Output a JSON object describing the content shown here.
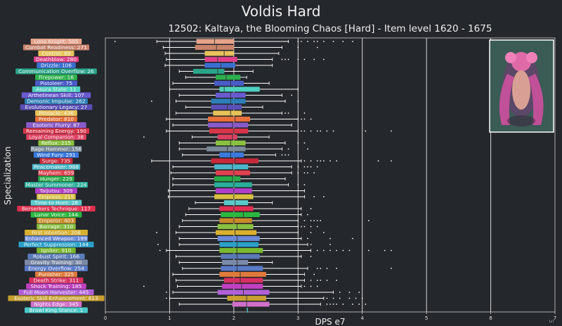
{
  "chart_data": {
    "type": "boxplot",
    "title": "Voldis Hard",
    "subtitle": "12502: Kaltaya, the Blooming Chaos [Hard] - Item level 1620 - 1675",
    "xlabel": "DPS e7",
    "ylabel": "Specialization",
    "x_scale_note": "1e7",
    "xlim": [
      0,
      7
    ],
    "xticks": [
      "0",
      "1",
      "2",
      "3",
      "4",
      "5",
      "6",
      "7"
    ],
    "grid_x": true,
    "inset_image": "boss-portrait",
    "categories": [
      {
        "label": "Lone Knight: 505",
        "color": "#e6a38a",
        "q1": 1.42,
        "med": 1.7,
        "q3": 2.0,
        "wl": 0.8,
        "wh": 2.85,
        "out": [
          0.15,
          3.0,
          3.05,
          3.15,
          3.25,
          3.3,
          3.4,
          3.55,
          3.7,
          3.85
        ]
      },
      {
        "label": "Combat Readiness: 271",
        "color": "#c9836b",
        "q1": 1.4,
        "med": 1.73,
        "q3": 2.0,
        "wl": 0.9,
        "wh": 2.75,
        "out": [
          3.0,
          3.3
        ]
      },
      {
        "label": "Control: 89",
        "color": "#e8c35a",
        "q1": 1.55,
        "med": 1.85,
        "q3": 2.0,
        "wl": 0.93,
        "wh": 2.7,
        "out": []
      },
      {
        "label": "Deathblow: 280",
        "color": "#e0408a",
        "q1": 1.55,
        "med": 1.75,
        "q3": 2.05,
        "wl": 0.95,
        "wh": 2.6,
        "out": [
          2.75,
          2.8,
          2.85,
          3.0,
          3.1,
          3.25,
          3.4
        ]
      },
      {
        "label": "Drizzle: 106",
        "color": "#3a6fd0",
        "q1": 1.55,
        "med": 1.8,
        "q3": 2.02,
        "wl": 0.93,
        "wh": 2.6,
        "out": []
      },
      {
        "label": "Communication Overflow: 26",
        "color": "#2aa58a",
        "q1": 1.37,
        "med": 1.75,
        "q3": 1.85,
        "wl": 1.15,
        "wh": 2.3,
        "out": []
      },
      {
        "label": "Firepower: 16",
        "color": "#2bb04e",
        "q1": 1.72,
        "med": 1.88,
        "q3": 2.1,
        "wl": 1.25,
        "wh": 2.2,
        "out": []
      },
      {
        "label": "Pistoleer: 75",
        "color": "#4a5cc8",
        "q1": 1.7,
        "med": 1.95,
        "q3": 2.15,
        "wl": 1.05,
        "wh": 2.55,
        "out": []
      },
      {
        "label": "Asura State: 11",
        "color": "#4fd1c0",
        "q1": 1.78,
        "med": 1.85,
        "q3": 2.4,
        "wl": 1.0,
        "wh": 3.0,
        "out": []
      },
      {
        "label": "Arthetinean Skill: 107",
        "color": "#6a5ad0",
        "q1": 1.72,
        "med": 1.95,
        "q3": 2.18,
        "wl": 1.15,
        "wh": 2.75,
        "out": [
          2.9
        ]
      },
      {
        "label": "Demonic Impulse: 262",
        "color": "#2d7fb8",
        "q1": 1.65,
        "med": 1.95,
        "q3": 2.18,
        "wl": 1.1,
        "wh": 2.8,
        "out": [
          0.72,
          3.0
        ]
      },
      {
        "label": "Evolutionary Legacy: 27",
        "color": "#5a4fb8",
        "q1": 1.65,
        "med": 1.9,
        "q3": 2.12,
        "wl": 1.25,
        "wh": 2.45,
        "out": []
      },
      {
        "label": "Pinnacle: 436",
        "color": "#e8c35a",
        "q1": 1.68,
        "med": 1.95,
        "q3": 2.12,
        "wl": 1.1,
        "wh": 2.75,
        "out": [
          2.8,
          2.85,
          3.1
        ]
      },
      {
        "label": "Predator: 810",
        "color": "#e8703a",
        "q1": 1.6,
        "med": 2.02,
        "q3": 2.25,
        "wl": 0.95,
        "wh": 3.0,
        "out": [
          3.05,
          3.1,
          3.2
        ]
      },
      {
        "label": "Esoteric Flurry: 87",
        "color": "#8a5ac8",
        "q1": 1.6,
        "med": 1.98,
        "q3": 2.22,
        "wl": 1.05,
        "wh": 2.9,
        "out": []
      },
      {
        "label": "Remaining Energy: 190",
        "color": "#d8344a",
        "q1": 1.62,
        "med": 2.0,
        "q3": 2.22,
        "wl": 0.95,
        "wh": 3.0,
        "out": [
          3.05,
          3.1,
          3.2,
          3.3,
          3.35,
          3.45,
          3.55,
          4.05,
          4.45
        ]
      },
      {
        "label": "Loyal Companion: 38",
        "color": "#e04060",
        "q1": 1.75,
        "med": 1.98,
        "q3": 2.05,
        "wl": 1.35,
        "wh": 2.55,
        "out": [
          0.6
        ]
      },
      {
        "label": "Reflux: 215",
        "color": "#8ac040",
        "q1": 1.72,
        "med": 1.95,
        "q3": 2.18,
        "wl": 1.15,
        "wh": 2.8,
        "out": [
          3.0,
          3.1
        ]
      },
      {
        "label": "Rage Hammer: 156",
        "color": "#7a8a9a",
        "q1": 1.58,
        "med": 1.9,
        "q3": 2.18,
        "wl": 1.15,
        "wh": 2.75,
        "out": [
          2.85,
          3.15
        ]
      },
      {
        "label": "Wind Fury: 291",
        "color": "#3a7ae0",
        "q1": 1.78,
        "med": 1.95,
        "q3": 2.15,
        "wl": 1.2,
        "wh": 2.65,
        "out": [
          2.75,
          2.8,
          2.85
        ]
      },
      {
        "label": "Surge: 735",
        "color": "#c82a3a",
        "q1": 1.65,
        "med": 2.02,
        "q3": 2.38,
        "wl": 0.72,
        "wh": 3.05,
        "out": [
          3.1,
          3.2,
          3.3,
          3.35,
          3.4,
          3.5,
          3.6,
          4.25,
          4.45
        ]
      },
      {
        "label": "Peacemaker: 988",
        "color": "#4ab8c8",
        "q1": 1.7,
        "med": 1.98,
        "q3": 2.22,
        "wl": 1.05,
        "wh": 2.9,
        "out": [
          3.0,
          3.1,
          3.15,
          3.2,
          3.3
        ]
      },
      {
        "label": "Mayhem: 659",
        "color": "#e04050",
        "q1": 1.72,
        "med": 2.0,
        "q3": 2.25,
        "wl": 1.02,
        "wh": 2.9,
        "out": [
          3.0,
          3.1,
          3.15,
          3.25
        ]
      },
      {
        "label": "Hunger: 229",
        "color": "#2aaa4a",
        "q1": 1.7,
        "med": 1.98,
        "q3": 2.1,
        "wl": 1.05,
        "wh": 2.8,
        "out": []
      },
      {
        "label": "Master Summoner: 224",
        "color": "#2ab09a",
        "q1": 1.7,
        "med": 2.0,
        "q3": 2.28,
        "wl": 1.05,
        "wh": 2.85,
        "out": [
          3.0,
          3.1
        ]
      },
      {
        "label": "Taijutsu: 309",
        "color": "#b040c8",
        "q1": 1.72,
        "med": 2.0,
        "q3": 2.28,
        "wl": 0.98,
        "wh": 3.1,
        "out": []
      },
      {
        "label": "Empress: 215",
        "color": "#d8c040",
        "q1": 1.7,
        "med": 2.0,
        "q3": 2.3,
        "wl": 0.98,
        "wh": 3.1,
        "out": [
          3.25,
          3.4
        ]
      },
      {
        "label": "Time to Hunt: 28",
        "color": "#5ac8c8",
        "q1": 1.85,
        "med": 2.02,
        "q3": 2.22,
        "wl": 1.4,
        "wh": 2.6,
        "out": []
      },
      {
        "label": "Berserkers Technique: 117",
        "color": "#e03050",
        "q1": 1.78,
        "med": 2.0,
        "q3": 2.3,
        "wl": 1.3,
        "wh": 3.05,
        "out": [
          3.2
        ]
      },
      {
        "label": "Lunar Voice: 144",
        "color": "#2ab840",
        "q1": 1.8,
        "med": 2.15,
        "q3": 2.4,
        "wl": 1.25,
        "wh": 3.05,
        "out": [
          3.15
        ]
      },
      {
        "label": "Emperor: 403",
        "color": "#c88a2a",
        "q1": 1.78,
        "med": 2.0,
        "q3": 2.28,
        "wl": 1.2,
        "wh": 3.0,
        "out": [
          3.1,
          3.2,
          3.25,
          3.3,
          3.35,
          4.1
        ]
      },
      {
        "label": "Barrage: 310",
        "color": "#8ac040",
        "q1": 1.75,
        "med": 2.05,
        "q3": 2.3,
        "wl": 1.15,
        "wh": 3.0,
        "out": [
          3.05,
          3.1,
          3.2,
          3.3
        ]
      },
      {
        "label": "First Intention: 208",
        "color": "#d8b030",
        "q1": 1.72,
        "med": 2.02,
        "q3": 2.35,
        "wl": 1.1,
        "wh": 3.0,
        "out": [
          0.8,
          3.2,
          3.4
        ]
      },
      {
        "label": "Enhanced Weapon: 199",
        "color": "#6a8ad8",
        "q1": 1.75,
        "med": 2.05,
        "q3": 2.4,
        "wl": 1.15,
        "wh": 3.05,
        "out": [
          3.15,
          3.5,
          3.85
        ]
      },
      {
        "label": "Perfect Suppression: 144",
        "color": "#2aa0c8",
        "q1": 1.78,
        "med": 2.05,
        "q3": 2.38,
        "wl": 1.15,
        "wh": 3.15,
        "out": [
          0.82,
          3.2,
          3.5
        ]
      },
      {
        "label": "Igniter: 910",
        "color": "#7ab830",
        "q1": 1.78,
        "med": 2.05,
        "q3": 2.45,
        "wl": 0.95,
        "wh": 3.2,
        "out": [
          0.85,
          3.3,
          3.4,
          3.5,
          3.6,
          3.7,
          3.8,
          4.1,
          4.35,
          4.45
        ]
      },
      {
        "label": "Robust Spirit: 166",
        "color": "#5a7ab8",
        "q1": 1.8,
        "med": 2.05,
        "q3": 2.4,
        "wl": 1.1,
        "wh": 3.05,
        "out": [
          3.2
        ]
      },
      {
        "label": "Gravity Training: 30",
        "color": "#7a8aa8",
        "q1": 1.82,
        "med": 2.05,
        "q3": 2.22,
        "wl": 1.15,
        "wh": 2.6,
        "out": []
      },
      {
        "label": "Energy Overflow: 254",
        "color": "#5a7ac8",
        "q1": 1.8,
        "med": 2.05,
        "q3": 2.45,
        "wl": 1.2,
        "wh": 3.15,
        "out": [
          3.3,
          3.35,
          3.45,
          3.6,
          4.45
        ]
      },
      {
        "label": "Punisher: 325",
        "color": "#e07a3a",
        "q1": 1.78,
        "med": 2.1,
        "q3": 2.5,
        "wl": 1.05,
        "wh": 3.1,
        "out": [
          3.25
        ]
      },
      {
        "label": "Death Strike: 311",
        "color": "#d83060",
        "q1": 1.85,
        "med": 2.1,
        "q3": 2.45,
        "wl": 1.1,
        "wh": 3.1,
        "out": [
          3.2,
          3.3,
          3.35,
          3.45,
          3.6
        ]
      },
      {
        "label": "Shock Training: 185",
        "color": "#c040c0",
        "q1": 1.82,
        "med": 2.12,
        "q3": 2.45,
        "wl": 1.12,
        "wh": 3.05,
        "out": [
          0.6,
          3.1,
          3.2,
          3.3
        ]
      },
      {
        "label": "Full Moon Harvester: 445",
        "color": "#b060d8",
        "q1": 1.75,
        "med": 2.15,
        "q3": 2.55,
        "wl": 1.05,
        "wh": 3.55,
        "out": [
          0.95,
          3.65,
          3.8,
          3.95
        ]
      },
      {
        "label": "Esoteric Skill Enhancement: 613",
        "color": "#c8a030",
        "q1": 1.9,
        "med": 2.2,
        "q3": 2.5,
        "wl": 1.0,
        "wh": 3.4,
        "out": [
          0.95,
          3.45,
          3.55,
          3.65,
          3.8,
          3.9,
          4.0
        ]
      },
      {
        "label": "Nights Edge: 345",
        "color": "#d070c8",
        "q1": 1.98,
        "med": 2.2,
        "q3": 2.55,
        "wl": 1.15,
        "wh": 3.35,
        "out": [
          3.45,
          3.5,
          3.55,
          3.6,
          3.7,
          3.85,
          3.95,
          4.05
        ]
      },
      {
        "label": "Brawl King Stance: 1",
        "color": "#4ac8c8",
        "q1": 2.2,
        "med": 2.2,
        "q3": 2.2,
        "wl": 2.2,
        "wh": 2.2,
        "out": []
      }
    ]
  }
}
